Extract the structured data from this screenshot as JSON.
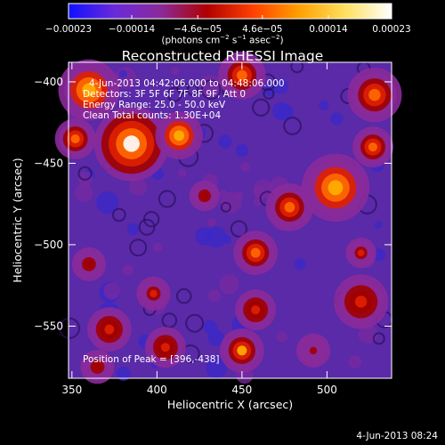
{
  "chart_data": {
    "type": "heatmap",
    "title": "Reconstructed RHESSI Image",
    "xlabel": "Heliocentric X (arcsec)",
    "ylabel": "Heliocentric Y (arcsec)",
    "xlim": [
      348,
      538
    ],
    "ylim": [
      -582,
      -388
    ],
    "x_ticks": [
      350,
      400,
      450,
      500
    ],
    "y_ticks": [
      -400,
      -450,
      -500,
      -550
    ],
    "x_tick_labels": [
      "350",
      "400",
      "450",
      "500"
    ],
    "y_tick_labels": [
      "−400",
      "−450",
      "−500",
      "−550"
    ],
    "colorbar": {
      "range": [
        -0.00023,
        0.00023
      ],
      "ticks": [
        -0.00023,
        -0.00014,
        -4.6e-05,
        4.6e-05,
        0.00014,
        0.00023
      ],
      "tick_labels": [
        "−0.00023",
        "−0.00014",
        "−4.6e−05",
        "4.6e−05",
        "0.00014",
        "0.00023"
      ],
      "unit_parts": [
        "(photons cm",
        "−2",
        " s",
        "−1",
        " asec",
        "−2",
        ")"
      ],
      "colors": [
        "#1010ff",
        "#6a2ad8",
        "#8a2a9a",
        "#b00000",
        "#ff4000",
        "#ffa000",
        "#ffe060",
        "#ffffff"
      ]
    },
    "annotations": [
      "4-Jun-2013 04:42:06.000 to 04:48:06.000",
      "Detectors: 3F 5F 6F 7F 8F 9F, Att 0",
      "Energy Range: 25.0 - 50.0 keV",
      "Clean     Total counts: 1.30E+04",
      "Position of Peak = [396,-438]"
    ],
    "peak": [
      396,
      -438
    ],
    "blobs": [
      {
        "x": 385,
        "y": -438,
        "intensity": 1.0,
        "width": 22
      },
      {
        "x": 360,
        "y": -405,
        "intensity": 0.95,
        "width": 18
      },
      {
        "x": 413,
        "y": -433,
        "intensity": 0.9,
        "width": 14
      },
      {
        "x": 352,
        "y": -435,
        "intensity": 0.8,
        "width": 12
      },
      {
        "x": 450,
        "y": -396,
        "intensity": 0.7,
        "width": 14
      },
      {
        "x": 505,
        "y": -465,
        "intensity": 0.9,
        "width": 20
      },
      {
        "x": 528,
        "y": -408,
        "intensity": 0.8,
        "width": 16
      },
      {
        "x": 527,
        "y": -440,
        "intensity": 0.75,
        "width": 12
      },
      {
        "x": 478,
        "y": -477,
        "intensity": 0.75,
        "width": 14
      },
      {
        "x": 520,
        "y": -535,
        "intensity": 0.6,
        "width": 16
      },
      {
        "x": 458,
        "y": -505,
        "intensity": 0.65,
        "width": 13
      },
      {
        "x": 458,
        "y": -540,
        "intensity": 0.6,
        "width": 12
      },
      {
        "x": 450,
        "y": -565,
        "intensity": 0.85,
        "width": 13
      },
      {
        "x": 372,
        "y": -552,
        "intensity": 0.6,
        "width": 13
      },
      {
        "x": 405,
        "y": -563,
        "intensity": 0.55,
        "width": 12
      },
      {
        "x": 398,
        "y": -530,
        "intensity": 0.45,
        "width": 10
      },
      {
        "x": 360,
        "y": -512,
        "intensity": 0.4,
        "width": 10
      },
      {
        "x": 428,
        "y": -470,
        "intensity": 0.35,
        "width": 9
      },
      {
        "x": 520,
        "y": -505,
        "intensity": 0.45,
        "width": 9
      },
      {
        "x": 492,
        "y": -565,
        "intensity": 0.3,
        "width": 10
      },
      {
        "x": 365,
        "y": -575,
        "intensity": 0.35,
        "width": 10
      }
    ],
    "grid": false,
    "legend": "none"
  },
  "timestamp": "4-Jun-2013 08:24"
}
